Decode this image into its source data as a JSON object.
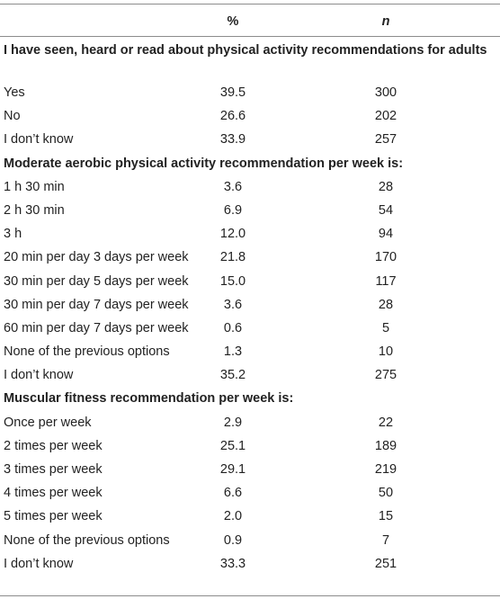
{
  "header": {
    "pct": "%",
    "n": "n"
  },
  "sections": [
    {
      "title": "I have seen, heard or read about physical activity recommendations for adults",
      "rows": [
        {
          "label": "Yes",
          "pct": "39.5",
          "n": "300"
        },
        {
          "label": "No",
          "pct": "26.6",
          "n": "202"
        },
        {
          "label": "I don’t know",
          "pct": "33.9",
          "n": "257"
        }
      ]
    },
    {
      "title": "Moderate aerobic physical activity recommendation per week is:",
      "rows": [
        {
          "label": "1 h 30 min",
          "pct": "3.6",
          "n": "28"
        },
        {
          "label": "2 h 30 min",
          "pct": "6.9",
          "n": "54"
        },
        {
          "label": "3 h",
          "pct": "12.0",
          "n": "94"
        },
        {
          "label": "20 min per day 3 days per week",
          "pct": "21.8",
          "n": "170"
        },
        {
          "label": "30 min per day 5 days per week",
          "pct": "15.0",
          "n": "117"
        },
        {
          "label": "30 min per day 7 days per week",
          "pct": "3.6",
          "n": "28"
        },
        {
          "label": "60 min per day 7 days per week",
          "pct": "0.6",
          "n": "5"
        },
        {
          "label": "None of the previous options",
          "pct": "1.3",
          "n": "10"
        },
        {
          "label": "I don’t know",
          "pct": "35.2",
          "n": "275"
        }
      ]
    },
    {
      "title": "Muscular fitness recommendation per week is:",
      "rows": [
        {
          "label": "Once per week",
          "pct": "2.9",
          "n": "22"
        },
        {
          "label": "2 times per week",
          "pct": "25.1",
          "n": "189"
        },
        {
          "label": "3 times per week",
          "pct": "29.1",
          "n": "219"
        },
        {
          "label": "4 times per week",
          "pct": "6.6",
          "n": "50"
        },
        {
          "label": "5 times per week",
          "pct": "2.0",
          "n": "15"
        },
        {
          "label": "None of the previous options",
          "pct": "0.9",
          "n": "7"
        },
        {
          "label": "I don’t know",
          "pct": "33.3",
          "n": "251"
        }
      ]
    }
  ]
}
